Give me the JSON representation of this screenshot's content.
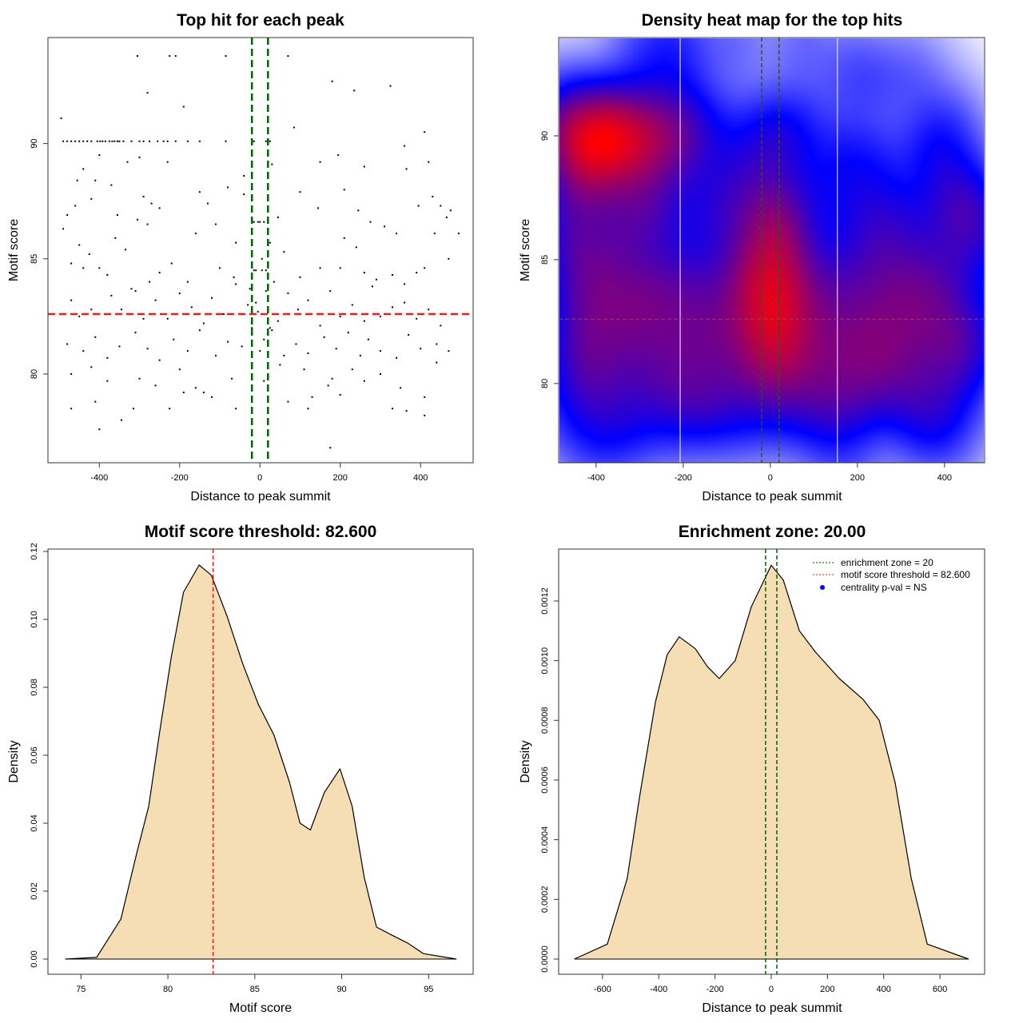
{
  "chart_data": [
    {
      "type": "scatter",
      "title": "Top hit for each peak",
      "xlabel": "Distance to peak summit",
      "ylabel": "Motif score",
      "xlim": [
        -528,
        531
      ],
      "ylim": [
        76.15,
        94.6
      ],
      "xticks": [
        -400,
        -200,
        0,
        200,
        400
      ],
      "yticks": [
        80,
        85,
        90
      ],
      "vlines": {
        "values": [
          -20,
          20
        ],
        "color": "#006400",
        "style": "dashed"
      },
      "hline": {
        "value": 82.6,
        "color": "#e0201c",
        "style": "dashed"
      },
      "points": [
        [
          -490,
          90.1
        ],
        [
          -480,
          90.1
        ],
        [
          -470,
          90.1
        ],
        [
          -460,
          90.1
        ],
        [
          -450,
          90.1
        ],
        [
          -440,
          90.1
        ],
        [
          -430,
          90.1
        ],
        [
          -420,
          90.1
        ],
        [
          -405,
          90.1
        ],
        [
          -398,
          90.1
        ],
        [
          -392,
          90.1
        ],
        [
          -385,
          90.1
        ],
        [
          -375,
          90.1
        ],
        [
          -368,
          90.1
        ],
        [
          -362,
          90.1
        ],
        [
          -355,
          90.1
        ],
        [
          -350,
          90.1
        ],
        [
          -340,
          90.1
        ],
        [
          -320,
          90.1
        ],
        [
          -300,
          90.1
        ],
        [
          -290,
          90.1
        ],
        [
          -275,
          90.1
        ],
        [
          -255,
          90.1
        ],
        [
          -240,
          90.1
        ],
        [
          -230,
          90.1
        ],
        [
          -210,
          90.1
        ],
        [
          -180,
          90.1
        ],
        [
          -150,
          90.1
        ],
        [
          -85,
          90.1
        ],
        [
          -15,
          90.1
        ],
        [
          15,
          90.1
        ],
        [
          25,
          90.1
        ],
        [
          -305,
          93.8
        ],
        [
          -225,
          93.8
        ],
        [
          -210,
          93.8
        ],
        [
          -85,
          93.8
        ],
        [
          70,
          93.8
        ],
        [
          -280,
          92.2
        ],
        [
          -190,
          91.6
        ],
        [
          -495,
          91.1
        ],
        [
          180,
          92.7
        ],
        [
          325,
          92.5
        ],
        [
          235,
          92.3
        ],
        [
          85,
          90.7
        ],
        [
          410,
          90.5
        ],
        [
          -330,
          89.2
        ],
        [
          -230,
          89.2
        ],
        [
          -300,
          89.4
        ],
        [
          -400,
          89.5
        ],
        [
          -440,
          88.9
        ],
        [
          -410,
          88.4
        ],
        [
          -370,
          88.2
        ],
        [
          195,
          89.5
        ],
        [
          150,
          89.2
        ],
        [
          360,
          89.9
        ],
        [
          -40,
          88.6
        ],
        [
          260,
          89.0
        ],
        [
          420,
          89.2
        ],
        [
          365,
          88.9
        ],
        [
          30,
          89.1
        ],
        [
          -455,
          88.4
        ],
        [
          -480,
          86.9
        ],
        [
          -460,
          87.3
        ],
        [
          -420,
          87.6
        ],
        [
          -355,
          86.9
        ],
        [
          -290,
          87.7
        ],
        [
          -270,
          87.4
        ],
        [
          -250,
          87.2
        ],
        [
          -305,
          86.7
        ],
        [
          -280,
          86.5
        ],
        [
          -150,
          87.9
        ],
        [
          -130,
          87.4
        ],
        [
          -80,
          88.1
        ],
        [
          -40,
          87.8
        ],
        [
          -110,
          86.5
        ],
        [
          -160,
          86.1
        ],
        [
          -60,
          85.7
        ],
        [
          45,
          86.8
        ],
        [
          100,
          87.9
        ],
        [
          145,
          87.2
        ],
        [
          210,
          88.0
        ],
        [
          245,
          87.1
        ],
        [
          275,
          86.6
        ],
        [
          310,
          86.4
        ],
        [
          340,
          86.1
        ],
        [
          395,
          87.3
        ],
        [
          430,
          87.7
        ],
        [
          450,
          87.3
        ],
        [
          465,
          86.8
        ],
        [
          475,
          87.1
        ],
        [
          495,
          86.1
        ],
        [
          435,
          86.1
        ],
        [
          210,
          85.9
        ],
        [
          -490,
          86.3
        ],
        [
          -470,
          84.8
        ],
        [
          -450,
          85.6
        ],
        [
          -425,
          85.2
        ],
        [
          -400,
          84.6
        ],
        [
          -380,
          84.3
        ],
        [
          -360,
          85.9
        ],
        [
          -335,
          85.4
        ],
        [
          -310,
          83.6
        ],
        [
          -275,
          84.0
        ],
        [
          -250,
          84.4
        ],
        [
          -220,
          84.8
        ],
        [
          -180,
          84.0
        ],
        [
          -100,
          84.6
        ],
        [
          -65,
          84.2
        ],
        [
          -10,
          84.5
        ],
        [
          5,
          84.5
        ],
        [
          25,
          85.7
        ],
        [
          60,
          85.3
        ],
        [
          100,
          84.2
        ],
        [
          150,
          84.6
        ],
        [
          200,
          84.6
        ],
        [
          240,
          85.5
        ],
        [
          260,
          84.4
        ],
        [
          290,
          84.1
        ],
        [
          330,
          84.3
        ],
        [
          360,
          83.9
        ],
        [
          390,
          84.4
        ],
        [
          410,
          84.6
        ],
        [
          470,
          85.0
        ],
        [
          -440,
          84.6
        ],
        [
          -470,
          83.2
        ],
        [
          -450,
          82.5
        ],
        [
          -420,
          82.8
        ],
        [
          -400,
          82.6
        ],
        [
          -370,
          83.4
        ],
        [
          -345,
          82.8
        ],
        [
          -320,
          83.7
        ],
        [
          -290,
          82.4
        ],
        [
          -260,
          83.2
        ],
        [
          -230,
          82.4
        ],
        [
          -200,
          83.5
        ],
        [
          -170,
          82.9
        ],
        [
          -140,
          82.2
        ],
        [
          -120,
          83.3
        ],
        [
          -90,
          82.6
        ],
        [
          -60,
          83.9
        ],
        [
          -30,
          83.0
        ],
        [
          -10,
          83.1
        ],
        [
          20,
          82.9
        ],
        [
          45,
          82.3
        ],
        [
          70,
          83.5
        ],
        [
          95,
          82.8
        ],
        [
          120,
          83.2
        ],
        [
          150,
          82.1
        ],
        [
          175,
          83.6
        ],
        [
          200,
          82.5
        ],
        [
          230,
          83.0
        ],
        [
          260,
          82.3
        ],
        [
          280,
          83.8
        ],
        [
          300,
          82.5
        ],
        [
          330,
          82.9
        ],
        [
          360,
          83.1
        ],
        [
          390,
          82.4
        ],
        [
          420,
          82.8
        ],
        [
          450,
          82.1
        ],
        [
          480,
          82.6
        ],
        [
          -480,
          81.3
        ],
        [
          -440,
          81.0
        ],
        [
          -410,
          81.6
        ],
        [
          -380,
          80.7
        ],
        [
          -350,
          81.2
        ],
        [
          -310,
          81.8
        ],
        [
          -280,
          81.1
        ],
        [
          -250,
          80.6
        ],
        [
          -215,
          81.5
        ],
        [
          -180,
          81.0
        ],
        [
          -150,
          81.9
        ],
        [
          -110,
          80.8
        ],
        [
          -80,
          81.4
        ],
        [
          -45,
          81.2
        ],
        [
          -20,
          81.7
        ],
        [
          10,
          81.5
        ],
        [
          30,
          81.9
        ],
        [
          60,
          80.8
        ],
        [
          90,
          81.3
        ],
        [
          120,
          80.9
        ],
        [
          160,
          81.6
        ],
        [
          190,
          81.1
        ],
        [
          220,
          81.8
        ],
        [
          250,
          80.8
        ],
        [
          270,
          81.5
        ],
        [
          300,
          81.0
        ],
        [
          340,
          80.7
        ],
        [
          370,
          81.7
        ],
        [
          400,
          81.1
        ],
        [
          440,
          81.3
        ],
        [
          470,
          81.0
        ],
        [
          -470,
          80.0
        ],
        [
          -420,
          80.3
        ],
        [
          -380,
          79.7
        ],
        [
          -300,
          79.8
        ],
        [
          -260,
          79.5
        ],
        [
          -200,
          80.2
        ],
        [
          -160,
          79.4
        ],
        [
          -120,
          79.0
        ],
        [
          -70,
          79.8
        ],
        [
          -20,
          80.0
        ],
        [
          10,
          79.7
        ],
        [
          50,
          80.4
        ],
        [
          110,
          80.2
        ],
        [
          170,
          79.5
        ],
        [
          200,
          79.1
        ],
        [
          230,
          80.2
        ],
        [
          260,
          79.7
        ],
        [
          300,
          80.0
        ],
        [
          350,
          79.4
        ],
        [
          410,
          79.0
        ],
        [
          440,
          80.5
        ],
        [
          130,
          79.0
        ],
        [
          180,
          79.8
        ],
        [
          -470,
          78.5
        ],
        [
          -400,
          77.6
        ],
        [
          -410,
          78.8
        ],
        [
          -345,
          78.0
        ],
        [
          -315,
          78.5
        ],
        [
          -225,
          78.5
        ],
        [
          -140,
          79.2
        ],
        [
          -190,
          79.2
        ],
        [
          -60,
          78.5
        ],
        [
          20,
          79.5
        ],
        [
          70,
          78.8
        ],
        [
          120,
          78.5
        ],
        [
          175,
          76.8
        ],
        [
          330,
          78.5
        ],
        [
          365,
          78.4
        ],
        [
          410,
          78.2
        ],
        [
          -15,
          86.6
        ],
        [
          -5,
          86.6
        ],
        [
          0,
          86.6
        ],
        [
          10,
          86.6
        ],
        [
          20,
          86.6
        ],
        [
          -20,
          82.0
        ],
        [
          -5,
          82.7
        ],
        [
          15,
          83.6
        ],
        [
          25,
          82.0
        ],
        [
          0,
          81.0
        ],
        [
          -25,
          83.7
        ],
        [
          5,
          85.0
        ],
        [
          35,
          84.0
        ],
        [
          -15,
          84.5
        ],
        [
          15,
          84.5
        ]
      ]
    },
    {
      "type": "heatmap",
      "title": "Density heat map for the top hits",
      "xlabel": "Distance to peak summit",
      "ylabel": "Motif score",
      "source": "2D density of the top-hit points",
      "colors": [
        "#ffffff",
        "#0000ff",
        "#ff0000"
      ],
      "xlim": [
        -486,
        492
      ],
      "ylim": [
        76.8,
        93.97
      ],
      "xticks": [
        -400,
        -200,
        0,
        200,
        400
      ],
      "yticks": [
        80,
        85,
        90
      ],
      "vlines": {
        "values": [
          -20,
          20
        ],
        "color": "#2f4f2f",
        "style": "dashed"
      },
      "white_lines": [
        -207,
        154
      ],
      "hline": {
        "value": 82.6,
        "color": "#a05050",
        "style": "dashed"
      }
    },
    {
      "type": "area",
      "title": "Motif score threshold: 82.600",
      "xlabel": "Motif score",
      "ylabel": "Density",
      "xlim": [
        73.1,
        97.56
      ],
      "ylim": [
        -0.00447,
        0.1207
      ],
      "xticks": [
        75,
        80,
        85,
        90,
        95
      ],
      "yticks": [
        0,
        0.02,
        0.04,
        0.06,
        0.08,
        0.1,
        0.12
      ],
      "ytick_labels": [
        "0.00",
        "0.02",
        "0.04",
        "0.06",
        "0.08",
        "0.10",
        "0.12"
      ],
      "fill": "#f5deb3",
      "vline": {
        "value": 82.6,
        "color": "#e0201c",
        "style": "dashed"
      },
      "x": [
        74.1,
        75.9,
        77.3,
        78.2,
        78.9,
        79.5,
        80.2,
        80.9,
        81.8,
        82.5,
        83.4,
        84.3,
        85.2,
        86.1,
        87.0,
        87.6,
        88.2,
        89.0,
        89.9,
        90.6,
        91.3,
        92.0,
        92.9,
        93.8,
        94.7,
        96.6
      ],
      "y": [
        0,
        0.0005,
        0.0118,
        0.031,
        0.045,
        0.066,
        0.089,
        0.108,
        0.116,
        0.113,
        0.101,
        0.087,
        0.075,
        0.066,
        0.052,
        0.04,
        0.038,
        0.049,
        0.056,
        0.045,
        0.024,
        0.0094,
        0.007,
        0.0047,
        0.0016,
        0
      ]
    },
    {
      "type": "area",
      "title": "Enrichment zone: 20.00",
      "xlabel": "Distance to peak summit",
      "ylabel": "Density",
      "xlim": [
        -756,
        759
      ],
      "ylim": [
        -5.09e-05,
        0.001374
      ],
      "xticks": [
        -600,
        -400,
        -200,
        0,
        200,
        400,
        600
      ],
      "yticks": [
        0,
        0.0002,
        0.0004,
        0.0006,
        0.0008,
        0.001,
        0.0012
      ],
      "ytick_labels": [
        "0.0000",
        "0.0002",
        "0.0004",
        "0.0006",
        "0.0008",
        "0.0010",
        "0.0012"
      ],
      "fill": "#f5deb3",
      "vlines": {
        "values": [
          -20,
          20
        ],
        "color": "#006400",
        "style": "dashed"
      },
      "x": [
        -700,
        -583,
        -512,
        -469,
        -412,
        -370,
        -327,
        -270,
        -227,
        -185,
        -128,
        -71,
        0,
        43,
        100,
        156,
        242,
        327,
        384,
        441,
        498,
        555,
        702
      ],
      "y": [
        0,
        5e-05,
        0.00027,
        0.00054,
        0.00086,
        0.00102,
        0.00108,
        0.00104,
        0.00098,
        0.00094,
        0.001,
        0.00118,
        0.00132,
        0.00127,
        0.0011,
        0.00103,
        0.00094,
        0.00087,
        0.0008,
        0.00059,
        0.00027,
        5e-05,
        0
      ],
      "legend": {
        "position": "top-right",
        "entries": [
          {
            "label": "enrichment zone = 20",
            "color": "#006400",
            "symbol": "dotted-line"
          },
          {
            "label": "motif score threshold = 82.600",
            "color": "#e0201c",
            "symbol": "dotted-line"
          },
          {
            "label": "centrality p-val = NS",
            "color": "#0000ff",
            "symbol": "dot"
          }
        ]
      }
    }
  ]
}
